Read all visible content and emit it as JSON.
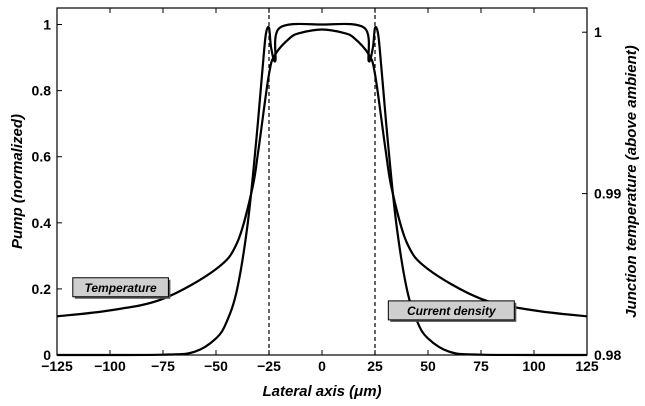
{
  "chart_data": {
    "type": "line",
    "xlabel": "Lateral axis (μm)",
    "ylabel_left": "Pump (normalized)",
    "ylabel_right": "Junction temperature (above ambient)",
    "xlim": [
      -125,
      125
    ],
    "ylim_left": [
      0,
      1.05
    ],
    "ylim_right": [
      0.98,
      1.0015
    ],
    "x_ticks": [
      "−125",
      "−100",
      "−75",
      "−50",
      "−25",
      "0",
      "25",
      "50",
      "75",
      "100",
      "125"
    ],
    "y_ticks_left": [
      "0",
      "0.2",
      "0.4",
      "0.6",
      "0.8",
      "1"
    ],
    "y_ticks_right": [
      "0.98",
      "0.99",
      "1"
    ],
    "grid": false,
    "vertical_markers": [
      -25,
      25
    ],
    "series": [
      {
        "name": "Temperature",
        "x": [
          -125,
          -100,
          -75,
          -50,
          -40,
          -33,
          -30,
          -25,
          -22,
          -15,
          -10,
          0,
          10,
          15,
          22,
          25,
          30,
          33,
          40,
          50,
          75,
          100,
          125
        ],
        "values": [
          0.117,
          0.135,
          0.17,
          0.26,
          0.34,
          0.5,
          0.62,
          0.85,
          0.91,
          0.96,
          0.975,
          0.985,
          0.975,
          0.96,
          0.91,
          0.85,
          0.62,
          0.5,
          0.34,
          0.26,
          0.17,
          0.135,
          0.117
        ]
      },
      {
        "name": "Current density",
        "x": [
          -125,
          -75,
          -60,
          -50,
          -45,
          -40,
          -35,
          -31,
          -28,
          -26.5,
          -25,
          -24,
          -22,
          -20,
          0,
          20,
          22,
          24,
          25,
          26.5,
          28,
          31,
          35,
          40,
          45,
          50,
          60,
          75,
          125
        ],
        "values": [
          0,
          0.001,
          0.01,
          0.05,
          0.1,
          0.2,
          0.4,
          0.65,
          0.87,
          0.97,
          0.99,
          0.93,
          0.89,
          0.99,
          1.0,
          0.99,
          0.89,
          0.93,
          0.99,
          0.97,
          0.87,
          0.65,
          0.4,
          0.2,
          0.1,
          0.05,
          0.01,
          0.001,
          0
        ]
      }
    ],
    "annotations": [
      {
        "text": "Temperature",
        "x": -95,
        "y": 0.205
      },
      {
        "text": "Current density",
        "x": 61,
        "y": 0.135
      }
    ]
  }
}
